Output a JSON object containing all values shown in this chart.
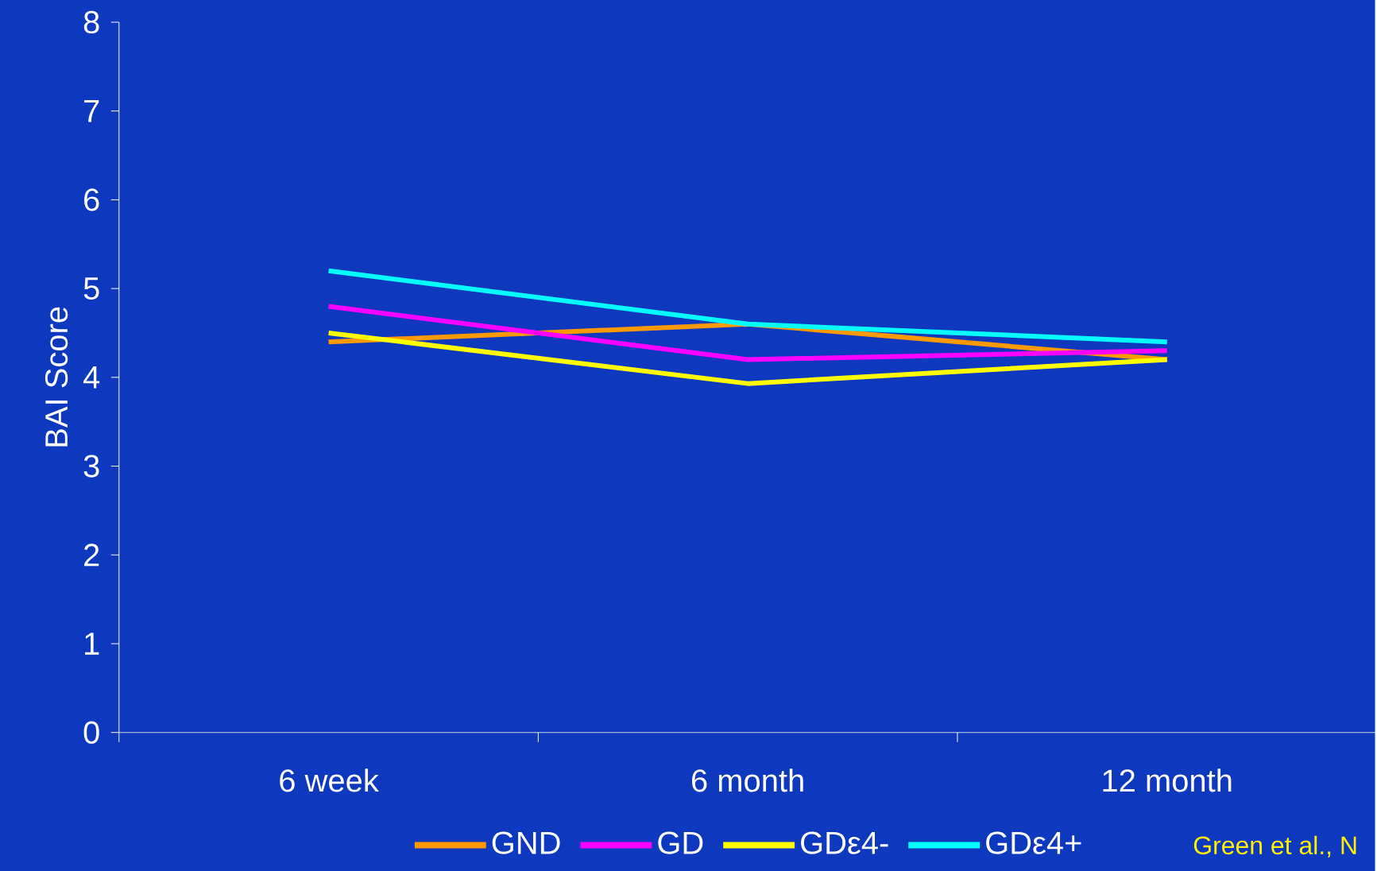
{
  "chart_data": {
    "type": "line",
    "ylabel": "BAI Score",
    "categories": [
      "6 week",
      "6 month",
      "12 month"
    ],
    "series": [
      {
        "name": "GND",
        "color": "#ff9900",
        "values": [
          4.4,
          4.6,
          4.2
        ]
      },
      {
        "name": "GD",
        "color": "#ff00ff",
        "values": [
          4.8,
          4.2,
          4.3
        ]
      },
      {
        "name": "GDε4-",
        "color": "#ffff00",
        "values": [
          4.5,
          3.93,
          4.2
        ]
      },
      {
        "name": "GDε4+",
        "color": "#00ffff",
        "values": [
          5.2,
          4.6,
          4.4
        ]
      }
    ],
    "ylim": [
      0,
      8
    ],
    "yticks": [
      0,
      1,
      2,
      3,
      4,
      5,
      6,
      7,
      8
    ],
    "grid": false,
    "legend": "bottom",
    "marker": "none",
    "line_style": "solid",
    "annotations": [
      "Green et al., N"
    ]
  }
}
